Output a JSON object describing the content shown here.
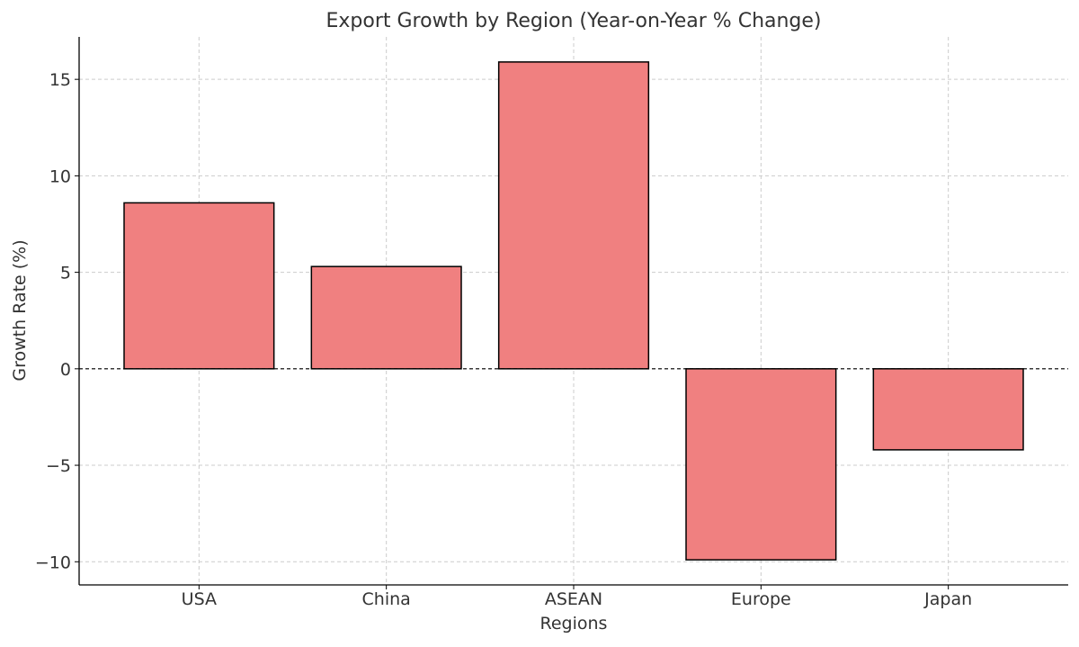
{
  "chart_data": {
    "type": "bar",
    "title": "Export Growth by Region (Year-on-Year % Change)",
    "xlabel": "Regions",
    "ylabel": "Growth Rate (%)",
    "categories": [
      "USA",
      "China",
      "ASEAN",
      "Europe",
      "Japan"
    ],
    "values": [
      8.6,
      5.3,
      15.9,
      -9.9,
      -4.2
    ],
    "ylim": [
      -11.2,
      17.2
    ],
    "yticks": [
      -10,
      -5,
      0,
      5,
      10,
      15
    ],
    "ytick_labels": [
      "−10",
      "−5",
      "0",
      "5",
      "10",
      "15"
    ],
    "grid": true,
    "zero_line": "dashed",
    "bar_color": "#f08080",
    "edge_color": "#000000"
  }
}
